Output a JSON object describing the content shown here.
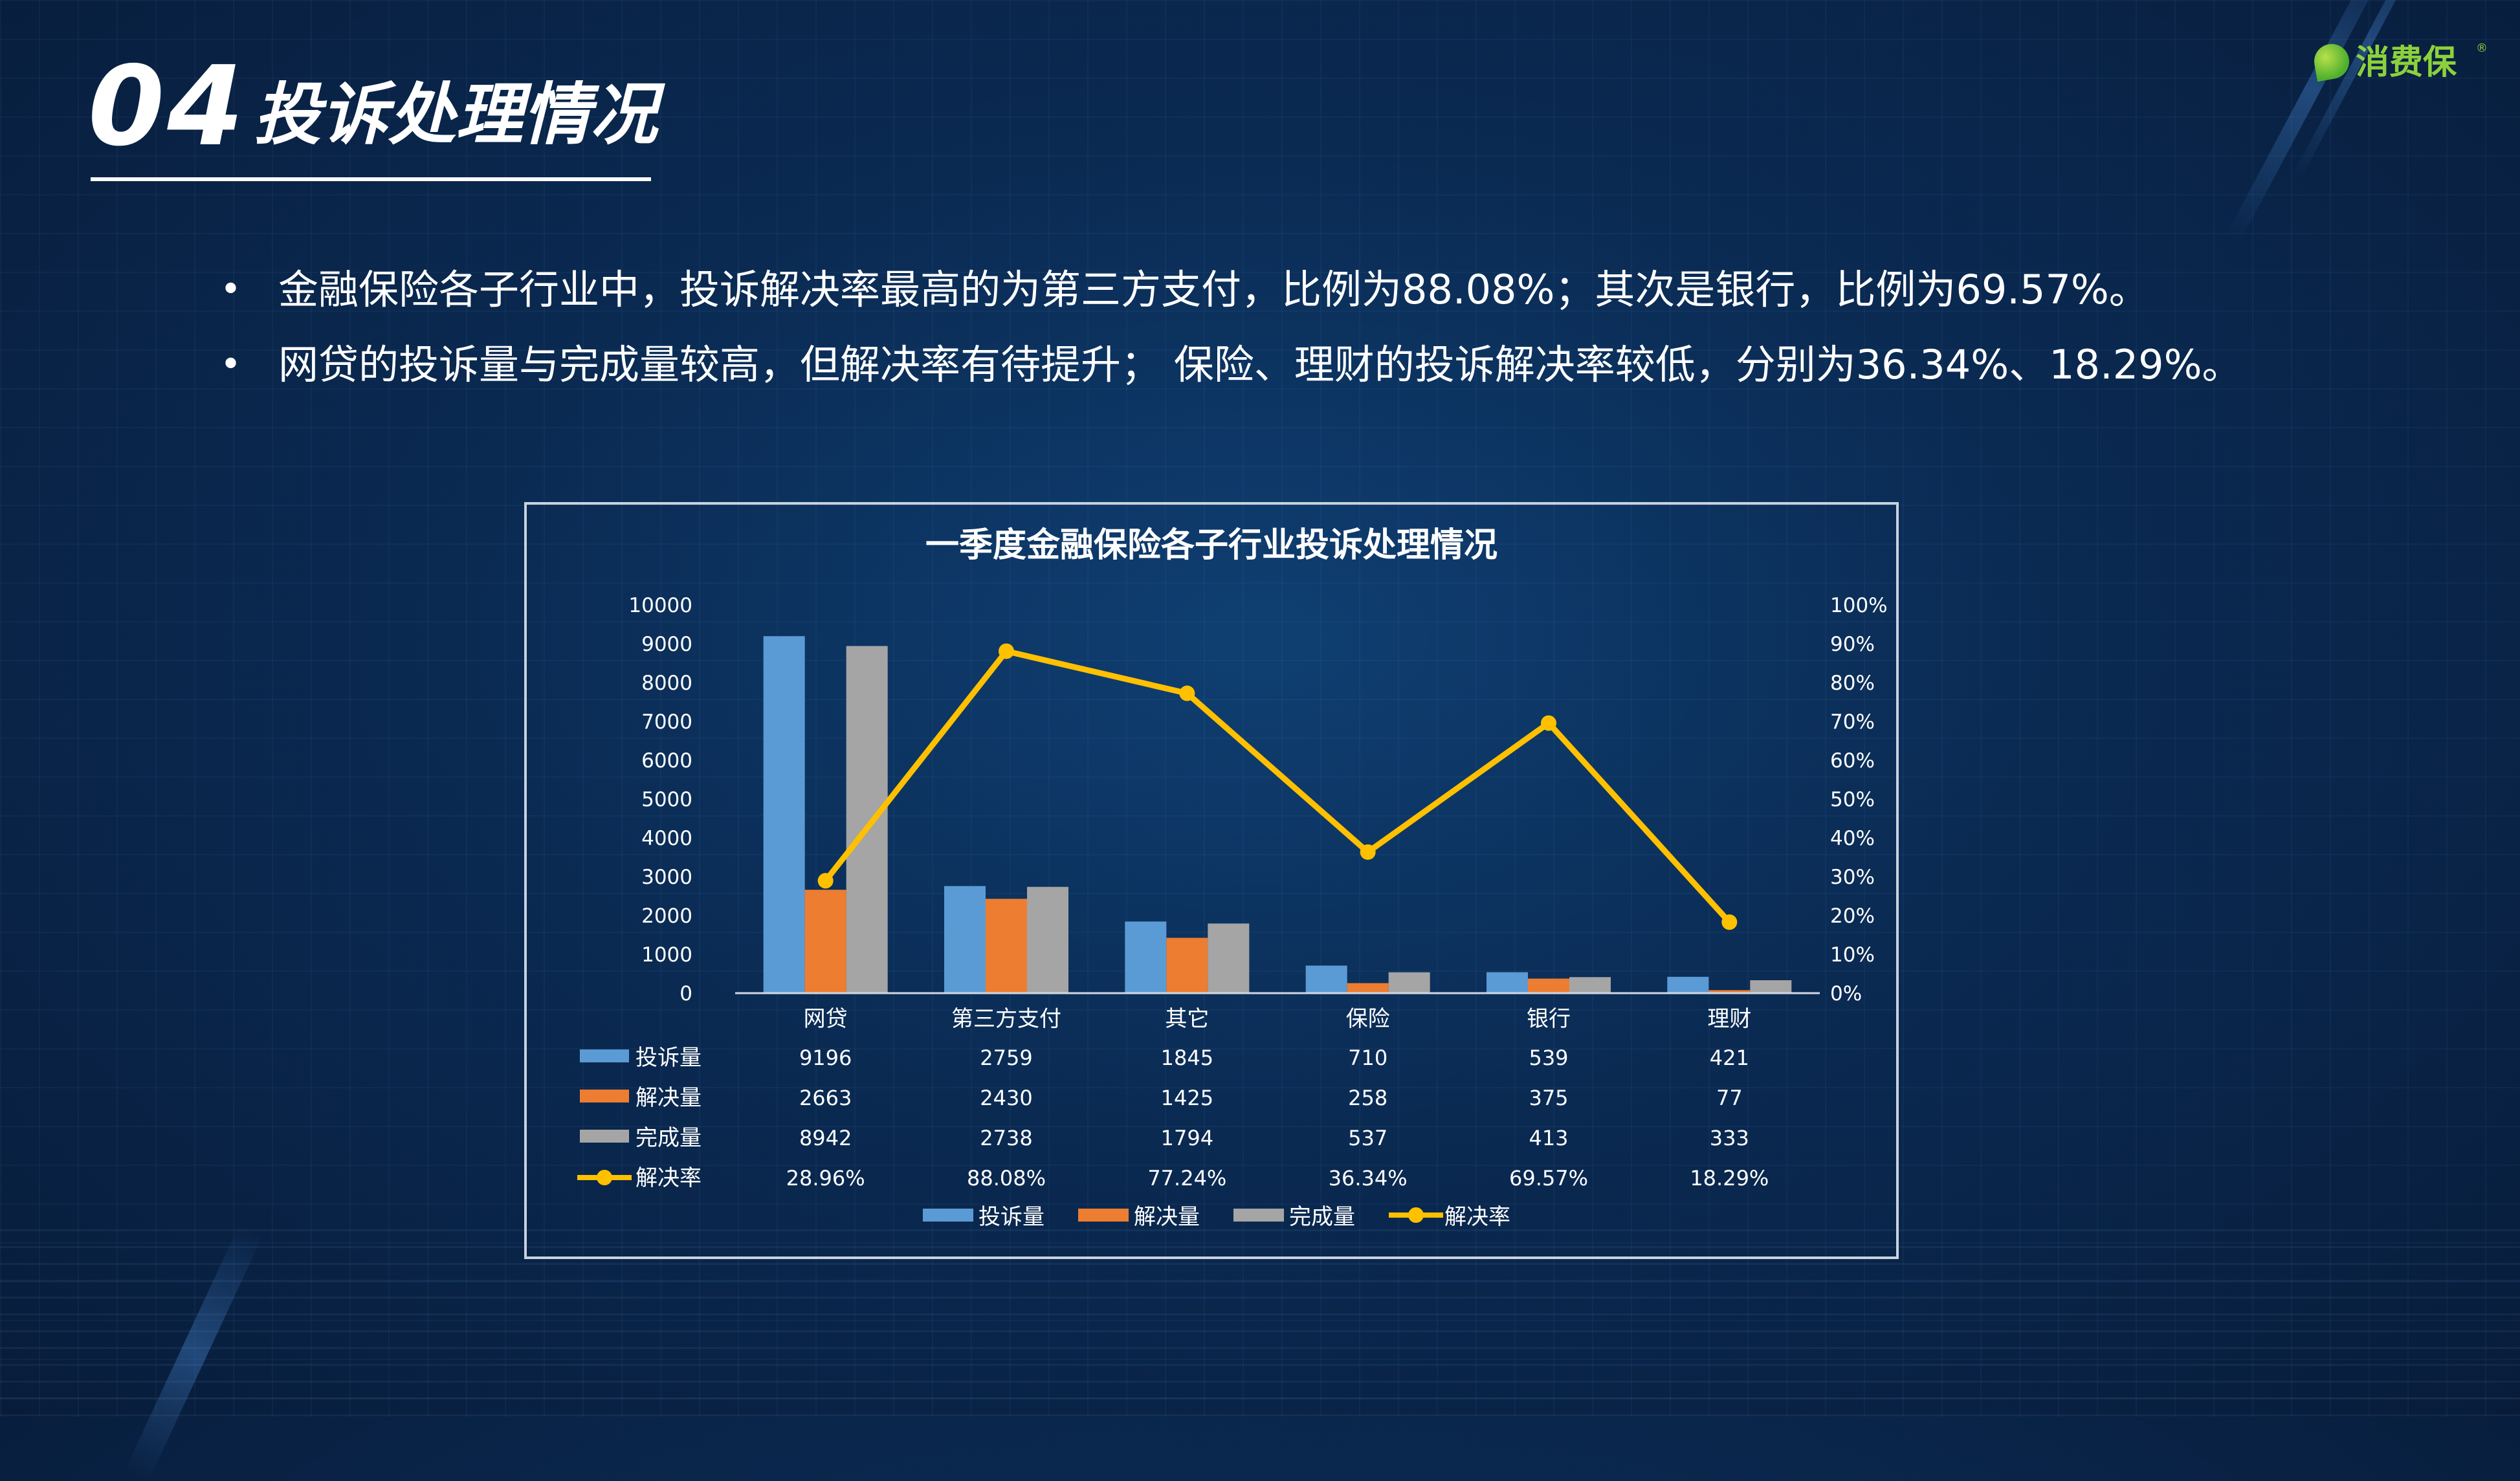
{
  "header": {
    "section_number": "04",
    "section_title": "投诉处理情况",
    "logo_text": "消费保",
    "logo_mark": "®"
  },
  "bullets": [
    "金融保险各子行业中，投诉解决率最高的为第三方支付，比例为88.08%；其次是银行，比例为69.57%。",
    "网贷的投诉量与完成量较高，但解决率有待提升； 保险、理财的投诉解决率较低，分别为36.34%、18.29%。"
  ],
  "bullet_symbol": "•",
  "chart_data": {
    "type": "bar",
    "title": "一季度金融保险各子行业投诉处理情况",
    "categories": [
      "网贷",
      "第三方支付",
      "其它",
      "保险",
      "银行",
      "理财"
    ],
    "series": [
      {
        "name": "投诉量",
        "kind": "bar",
        "axis": "left",
        "color": "#5b9bd5",
        "values": [
          9196,
          2759,
          1845,
          710,
          539,
          421
        ]
      },
      {
        "name": "解决量",
        "kind": "bar",
        "axis": "left",
        "color": "#ed7d31",
        "values": [
          2663,
          2430,
          1425,
          258,
          375,
          77
        ]
      },
      {
        "name": "完成量",
        "kind": "bar",
        "axis": "left",
        "color": "#a5a5a5",
        "values": [
          8942,
          2738,
          1794,
          537,
          413,
          333
        ]
      },
      {
        "name": "解决率",
        "kind": "line",
        "axis": "right",
        "color": "#ffc000",
        "values": [
          28.96,
          88.08,
          77.24,
          36.34,
          69.57,
          18.29
        ]
      }
    ],
    "table_labels": [
      [
        "9196",
        "2759",
        "1845",
        "710",
        "539",
        "421"
      ],
      [
        "2663",
        "2430",
        "1425",
        "258",
        "375",
        "77"
      ],
      [
        "8942",
        "2738",
        "1794",
        "537",
        "413",
        "333"
      ],
      [
        "28.96%",
        "88.08%",
        "77.24%",
        "36.34%",
        "69.57%",
        "18.29%"
      ]
    ],
    "y_left": {
      "min": 0,
      "max": 10000,
      "ticks": [
        "0",
        "1000",
        "2000",
        "3000",
        "4000",
        "5000",
        "6000",
        "7000",
        "8000",
        "9000",
        "10000"
      ]
    },
    "y_right": {
      "min": 0,
      "max": 100,
      "ticks": [
        "0%",
        "10%",
        "20%",
        "30%",
        "40%",
        "50%",
        "60%",
        "70%",
        "80%",
        "90%",
        "100%"
      ]
    },
    "grid": false,
    "legend": "bottom",
    "data_table": true
  }
}
